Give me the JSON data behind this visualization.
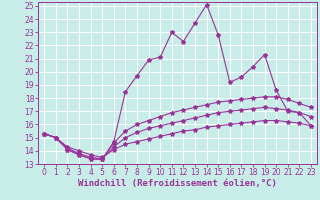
{
  "xlabel": "Windchill (Refroidissement éolien,°C)",
  "xlim": [
    0,
    23
  ],
  "ylim": [
    13,
    25
  ],
  "yticks": [
    13,
    14,
    15,
    16,
    17,
    18,
    19,
    20,
    21,
    22,
    23,
    24,
    25
  ],
  "xticks": [
    0,
    1,
    2,
    3,
    4,
    5,
    6,
    7,
    8,
    9,
    10,
    11,
    12,
    13,
    14,
    15,
    16,
    17,
    18,
    19,
    20,
    21,
    22,
    23
  ],
  "bg_color": "#c8ede8",
  "grid_color": "#ffffff",
  "line_color": "#993399",
  "line1_y": [
    15.3,
    15.0,
    14.1,
    13.7,
    13.4,
    13.35,
    14.7,
    18.5,
    19.7,
    20.9,
    21.1,
    23.0,
    22.3,
    23.7,
    25.1,
    22.8,
    19.2,
    19.6,
    20.4,
    21.3,
    18.6,
    17.0,
    16.9,
    15.9
  ],
  "line2_y": [
    15.3,
    15.0,
    14.1,
    13.7,
    13.4,
    13.35,
    14.6,
    15.5,
    16.0,
    16.3,
    16.6,
    16.9,
    17.1,
    17.3,
    17.5,
    17.7,
    17.8,
    17.9,
    18.0,
    18.1,
    18.1,
    17.9,
    17.6,
    17.3
  ],
  "line3_y": [
    15.3,
    15.0,
    14.2,
    13.8,
    13.5,
    13.4,
    14.3,
    15.0,
    15.4,
    15.7,
    15.9,
    16.1,
    16.3,
    16.5,
    16.7,
    16.9,
    17.0,
    17.1,
    17.2,
    17.3,
    17.2,
    17.1,
    16.9,
    16.6
  ],
  "line4_y": [
    15.3,
    15.0,
    14.3,
    14.0,
    13.7,
    13.5,
    14.1,
    14.5,
    14.7,
    14.9,
    15.1,
    15.3,
    15.5,
    15.6,
    15.8,
    15.9,
    16.0,
    16.1,
    16.2,
    16.3,
    16.3,
    16.2,
    16.1,
    15.9
  ],
  "xlabel_fontsize": 6.5,
  "tick_fontsize": 5.5,
  "linewidth": 0.8,
  "markersize": 3
}
